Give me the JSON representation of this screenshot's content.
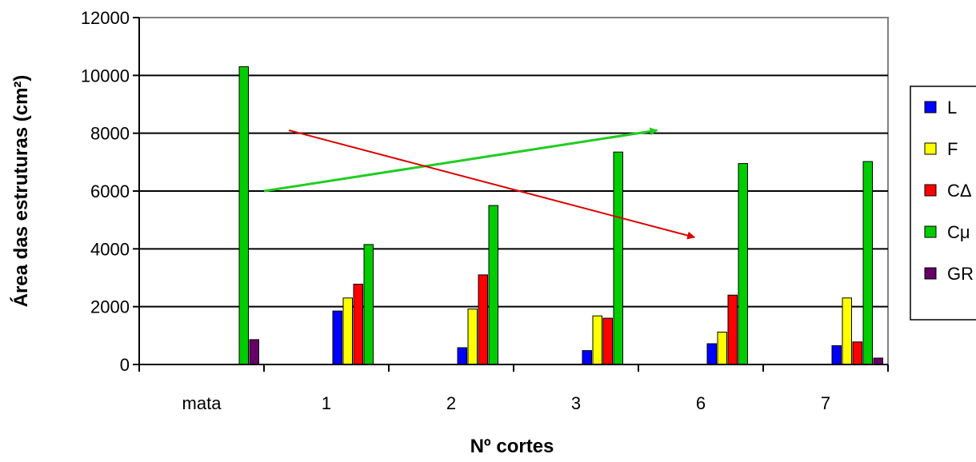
{
  "chart_data": {
    "type": "bar",
    "title": "",
    "xlabel": "Nº cortes",
    "ylabel": "Área das estruturas (cm²)",
    "ylim": [
      0,
      12000
    ],
    "yticks": [
      0,
      2000,
      4000,
      6000,
      8000,
      10000,
      12000
    ],
    "grid": true,
    "legend_position": "right",
    "categories": [
      "mata",
      "1",
      "2",
      "3",
      "6",
      "7"
    ],
    "series": [
      {
        "name": "L",
        "color": "#0000ff",
        "values": [
          0,
          1850,
          580,
          480,
          720,
          650
        ]
      },
      {
        "name": "F",
        "color": "#ffff00",
        "values": [
          0,
          2300,
          1920,
          1680,
          1120,
          2300
        ]
      },
      {
        "name": "CΔ",
        "color": "#ff0000",
        "values": [
          0,
          2780,
          3100,
          1600,
          2400,
          780
        ]
      },
      {
        "name": "Cμ",
        "color": "#00cc00",
        "values": [
          10300,
          4150,
          5500,
          7350,
          6950,
          7020
        ]
      },
      {
        "name": "GR",
        "color": "#660066",
        "values": [
          860,
          0,
          0,
          0,
          0,
          220
        ]
      }
    ],
    "annotations": [
      {
        "type": "arrow",
        "color": "#22cc22",
        "from": {
          "x": 1.0,
          "y": 6000
        },
        "to": {
          "x": 4.15,
          "y": 8100
        }
      },
      {
        "type": "arrow",
        "color": "#dd0000",
        "from": {
          "x": 1.2,
          "y": 8100
        },
        "to": {
          "x": 4.45,
          "y": 4400
        }
      }
    ]
  }
}
